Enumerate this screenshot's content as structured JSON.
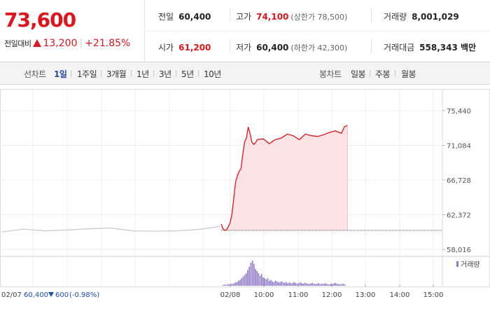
{
  "summary": {
    "price": "73,600",
    "change_label": "전일대비",
    "change_amount": "13,200",
    "change_rate": "+21.85%",
    "row1": [
      {
        "key": "전일",
        "value": "60,400",
        "red": false,
        "sub": ""
      },
      {
        "key": "고가",
        "value": "74,100",
        "red": true,
        "sub": "(상한가 78,500)"
      },
      {
        "key": "거래량",
        "value": "8,001,029",
        "red": false,
        "sub": ""
      }
    ],
    "row2": [
      {
        "key": "시가",
        "value": "61,200",
        "red": true,
        "sub": ""
      },
      {
        "key": "저가",
        "value": "60,400",
        "red": false,
        "sub": "(하한가 42,300)"
      },
      {
        "key": "거래대금",
        "value": "558,343 백만",
        "red": false,
        "sub": ""
      }
    ]
  },
  "tabs": {
    "line_label": "선차트",
    "line_items": [
      "1일",
      "1주일",
      "3개월",
      "1년",
      "3년",
      "5년",
      "10년"
    ],
    "line_active": 0,
    "candle_label": "봉차트",
    "candle_items": [
      "일봉",
      "주봉",
      "월봉"
    ]
  },
  "footer": {
    "prev_date": "02/07",
    "prev_close": "60,400",
    "prev_change": "600",
    "prev_rate": "(-0.98%)"
  },
  "colors": {
    "up": "#e0151b",
    "down": "#1f4fb5",
    "volume": "#8f7ac8",
    "fill": "#fde3e3",
    "prev_line": "#c8c8c8"
  },
  "chart_data": {
    "type": "line",
    "yticks": [
      "75,440",
      "71,084",
      "66,728",
      "62,372",
      "58,016"
    ],
    "ylim": [
      58016,
      75440
    ],
    "xticks": [
      "02/08",
      "10:00",
      "11:00",
      "12:00",
      "13:00",
      "14:00",
      "15:00"
    ],
    "volume_legend": "거래량",
    "previous_day": {
      "date": "02/07",
      "x": [
        0,
        10,
        20,
        30,
        40,
        50,
        60,
        70,
        80,
        90,
        100
      ],
      "y": [
        60200,
        60550,
        60350,
        60450,
        60600,
        60700,
        60350,
        60300,
        60350,
        60500,
        60900
      ]
    },
    "today": {
      "x": [
        "09:00",
        "09:03",
        "09:06",
        "09:09",
        "09:12",
        "09:15",
        "09:18",
        "09:21",
        "09:24",
        "09:27",
        "09:30",
        "09:33",
        "09:36",
        "09:39",
        "09:42",
        "09:45",
        "09:48",
        "09:51",
        "09:54",
        "09:57",
        "10:00",
        "10:10",
        "10:20",
        "10:30",
        "10:40",
        "10:50",
        "11:00",
        "11:10",
        "11:20",
        "11:30",
        "11:40",
        "11:50",
        "12:00",
        "12:10",
        "12:20",
        "12:25",
        "12:30"
      ],
      "y": [
        61200,
        60600,
        60400,
        60500,
        60900,
        61400,
        62500,
        64500,
        66500,
        67300,
        67800,
        68200,
        70000,
        71500,
        72000,
        73400,
        72600,
        71500,
        71200,
        71400,
        71800,
        71900,
        71300,
        71800,
        72000,
        72500,
        72300,
        71800,
        72500,
        72300,
        72200,
        72400,
        72700,
        72900,
        72600,
        73400,
        73600
      ],
      "previous_close": 60400
    },
    "volume_today": [
      2,
      3,
      2,
      4,
      3,
      5,
      4,
      6,
      8,
      9,
      12,
      14,
      18,
      22,
      26,
      30,
      38,
      45,
      55,
      60,
      52,
      40,
      35,
      30,
      24,
      28,
      20,
      18,
      15,
      18,
      12,
      14,
      10,
      9,
      12,
      10,
      8,
      9,
      11,
      8,
      7,
      9,
      6,
      8,
      7,
      6,
      9,
      7,
      5,
      6,
      8,
      6,
      5,
      7,
      6,
      5,
      4,
      6,
      7,
      5,
      4,
      5,
      6,
      4,
      5,
      4,
      6,
      5,
      4,
      3,
      5,
      4,
      6,
      7,
      5,
      4,
      3,
      4,
      5,
      3
    ]
  }
}
